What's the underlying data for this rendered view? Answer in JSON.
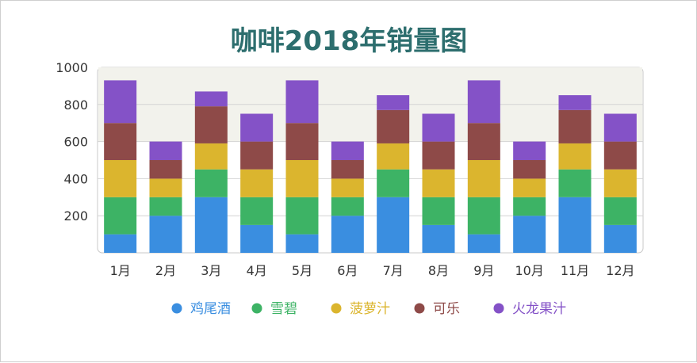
{
  "chart_data": {
    "type": "bar",
    "stacked": true,
    "title": "咖啡2018年销量图",
    "xlabel": "",
    "ylabel": "",
    "ylim": [
      0,
      1000
    ],
    "yticks": [
      "200",
      "400",
      "600",
      "800",
      "1000"
    ],
    "categories": [
      "1月",
      "2月",
      "3月",
      "4月",
      "5月",
      "6月",
      "7月",
      "8月",
      "9月",
      "10月",
      "11月",
      "12月"
    ],
    "series": [
      {
        "name": "鸡尾酒",
        "color": "#3a8ee0",
        "values": [
          100,
          200,
          300,
          150,
          100,
          200,
          300,
          150,
          100,
          200,
          300,
          150
        ]
      },
      {
        "name": "雪碧",
        "color": "#3db365",
        "values": [
          200,
          100,
          150,
          150,
          200,
          100,
          150,
          150,
          200,
          100,
          150,
          150
        ]
      },
      {
        "name": "菠萝汁",
        "color": "#dbb52e",
        "values": [
          200,
          100,
          140,
          150,
          200,
          100,
          140,
          150,
          200,
          100,
          140,
          150
        ]
      },
      {
        "name": "可乐",
        "color": "#8e4a48",
        "values": [
          200,
          100,
          200,
          150,
          200,
          100,
          180,
          150,
          200,
          100,
          180,
          150
        ]
      },
      {
        "name": "火龙果汁",
        "color": "#8452c7",
        "values": [
          230,
          100,
          80,
          150,
          230,
          100,
          80,
          150,
          230,
          100,
          80,
          150
        ]
      }
    ],
    "grid": true,
    "legend_position": "bottom"
  }
}
